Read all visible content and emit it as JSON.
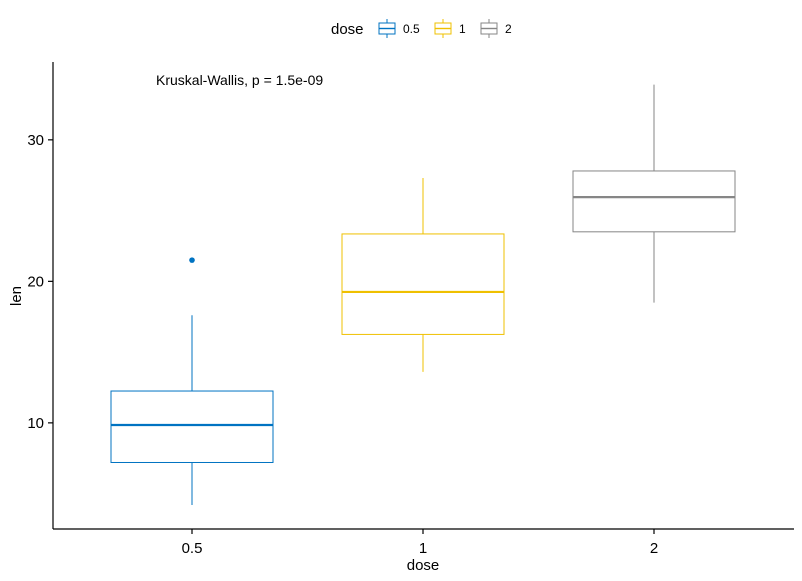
{
  "chart_data": {
    "type": "boxplot",
    "xlabel": "dose",
    "ylabel": "len",
    "categories": [
      "0.5",
      "1",
      "2"
    ],
    "ylim": [
      2.5,
      35.5
    ],
    "yticks": [
      10,
      20,
      30
    ],
    "annotation": "Kruskal-Wallis, p = 1.5e-09",
    "legend": {
      "title": "dose",
      "position": "top",
      "entries": [
        "0.5",
        "1",
        "2"
      ]
    },
    "grid": false,
    "series": [
      {
        "category": "0.5",
        "color": "#0073C2",
        "min": 4.2,
        "q1": 7.2,
        "median": 9.85,
        "q3": 12.25,
        "max": 17.6,
        "outliers": [
          21.5
        ]
      },
      {
        "category": "1",
        "color": "#EFC000",
        "min": 13.6,
        "q1": 16.25,
        "median": 19.25,
        "q3": 23.35,
        "max": 27.3,
        "outliers": []
      },
      {
        "category": "2",
        "color": "#868686",
        "min": 18.5,
        "q1": 23.5,
        "median": 25.95,
        "q3": 27.8,
        "max": 33.9,
        "outliers": []
      }
    ]
  }
}
